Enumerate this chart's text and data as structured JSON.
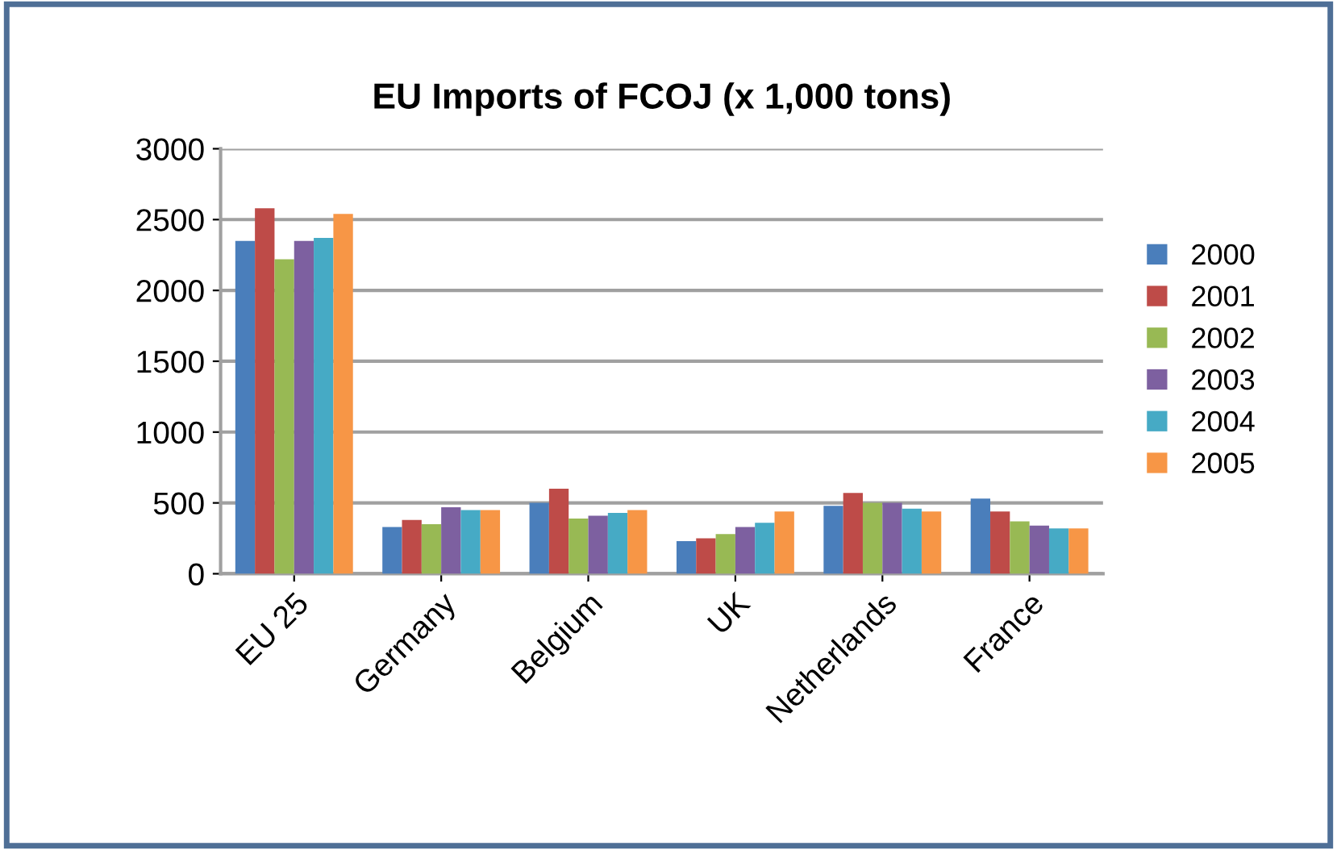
{
  "chart_data": {
    "type": "bar",
    "title": "EU Imports of FCOJ (x 1,000 tons)",
    "categories": [
      "EU 25",
      "Germany",
      "Belgium",
      "UK",
      "Netherlands",
      "France"
    ],
    "series": [
      {
        "name": "2000",
        "color": "#4a7ebb",
        "values": [
          2350,
          330,
          500,
          230,
          480,
          530
        ]
      },
      {
        "name": "2001",
        "color": "#be4b48",
        "values": [
          2580,
          380,
          600,
          250,
          570,
          440
        ]
      },
      {
        "name": "2002",
        "color": "#98b954",
        "values": [
          2220,
          350,
          390,
          280,
          500,
          370
        ]
      },
      {
        "name": "2003",
        "color": "#7d60a0",
        "values": [
          2350,
          470,
          410,
          330,
          500,
          340
        ]
      },
      {
        "name": "2004",
        "color": "#46aac5",
        "values": [
          2370,
          450,
          430,
          360,
          460,
          320
        ]
      },
      {
        "name": "2005",
        "color": "#f79646",
        "values": [
          2540,
          450,
          450,
          440,
          440,
          320
        ]
      }
    ],
    "ylim": [
      0,
      3000
    ],
    "yticks": [
      0,
      500,
      1000,
      1500,
      2000,
      2500,
      3000
    ],
    "grid": "y",
    "legend": "right"
  }
}
